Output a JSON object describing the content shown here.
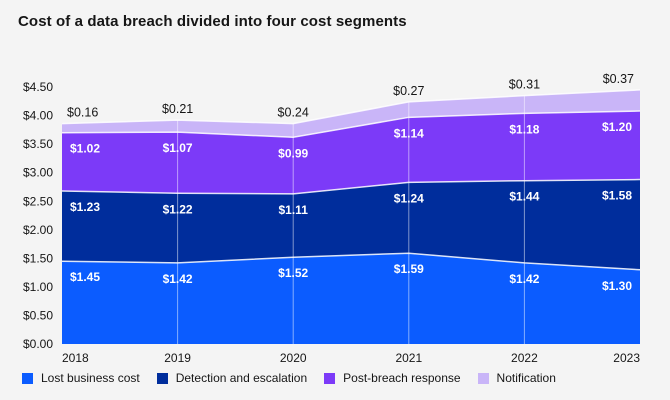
{
  "title": "Cost of a data breach divided into four cost segments",
  "colors": {
    "background": "#f4f4f4",
    "text": "#161616",
    "gridline": "#ffffff",
    "band_separator": "#ffffff"
  },
  "chart_data": {
    "type": "area",
    "stacked": true,
    "title": "Cost of a data breach divided into four cost segments",
    "categories": [
      "2018",
      "2019",
      "2020",
      "2021",
      "2022",
      "2023"
    ],
    "series": [
      {
        "name": "Lost business cost",
        "color": "#0b5cff",
        "values": [
          1.45,
          1.42,
          1.52,
          1.59,
          1.42,
          1.3
        ]
      },
      {
        "name": "Detection and escalation",
        "color": "#002d9c",
        "values": [
          1.23,
          1.22,
          1.11,
          1.24,
          1.44,
          1.58
        ]
      },
      {
        "name": "Post-breach response",
        "color": "#7c3af8",
        "values": [
          1.02,
          1.07,
          0.99,
          1.14,
          1.18,
          1.2
        ]
      },
      {
        "name": "Notification",
        "color": "#c9b5f8",
        "values": [
          0.16,
          0.21,
          0.24,
          0.27,
          0.31,
          0.37
        ]
      }
    ],
    "totals": [
      3.86,
      3.92,
      3.86,
      4.24,
      4.35,
      4.45
    ],
    "value_prefix": "$",
    "xlabel": "",
    "ylabel": "",
    "ylim": [
      0,
      4.5
    ],
    "y_ticks": [
      "$0.00",
      "$0.50",
      "$1.00",
      "$1.50",
      "$2.00",
      "$2.50",
      "$3.00",
      "$3.50",
      "$4.00",
      "$4.50"
    ],
    "grid": "vertical-white-inside-area",
    "legend_position": "bottom"
  }
}
